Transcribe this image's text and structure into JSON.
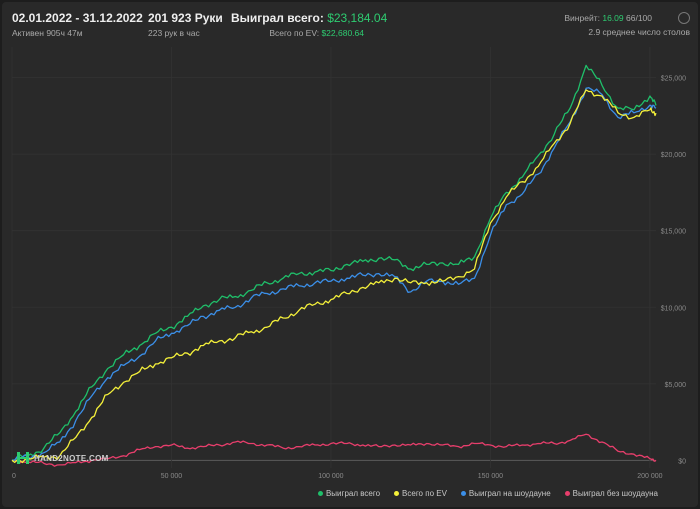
{
  "header": {
    "date_range": "02.01.2022 - 31.12.2022",
    "active": "Активен 905ч 47м",
    "hands": "201 923 Руки",
    "hands_per_hour": "223 рук в час",
    "won_label": "Выиграл всего:",
    "won_value": "$23,184.04",
    "ev_label": "Всего по EV:",
    "ev_value": "$22,680.64",
    "winrate_label": "Винрейт:",
    "winrate_value": "16.09",
    "winrate_rest": "66/100",
    "tables": "2.9 среднее число столов"
  },
  "logo_text": "HAND2NOTE.COM",
  "icons": {
    "settings": "gear-icon",
    "logo": "hand2note-logo-icon"
  },
  "chart_data": {
    "type": "line",
    "x_ticks": [
      "0",
      "50 000",
      "100 000",
      "150 000",
      "200 000"
    ],
    "y_ticks": [
      "$0",
      "$5,000",
      "$10,000",
      "$15,000",
      "$20,000",
      "$25,000"
    ],
    "xlim": [
      0,
      201923
    ],
    "ylim": [
      -500,
      27000
    ],
    "x": [
      0,
      5000,
      10000,
      15000,
      20000,
      25000,
      30000,
      35000,
      40000,
      45000,
      50000,
      55000,
      60000,
      65000,
      70000,
      75000,
      80000,
      85000,
      90000,
      95000,
      100000,
      105000,
      110000,
      115000,
      120000,
      125000,
      130000,
      135000,
      140000,
      145000,
      150000,
      155000,
      160000,
      165000,
      170000,
      175000,
      180000,
      185000,
      190000,
      195000,
      200000,
      201923
    ],
    "series": [
      {
        "name": "Выиграл всего",
        "color": "#1fbf6a",
        "values": [
          0,
          300,
          800,
          1800,
          3200,
          4800,
          6000,
          6900,
          7500,
          8300,
          8700,
          9400,
          10100,
          10500,
          10700,
          11100,
          11600,
          11900,
          12200,
          12300,
          12400,
          12800,
          13000,
          13200,
          13100,
          12500,
          12800,
          12900,
          12800,
          13300,
          15800,
          17500,
          18500,
          19900,
          21300,
          23000,
          25800,
          24500,
          23000,
          22900,
          23800,
          23184
        ]
      },
      {
        "name": "Всего по EV",
        "color": "#f4f03a",
        "values": [
          0,
          100,
          200,
          300,
          1500,
          2800,
          4300,
          5100,
          5800,
          6300,
          6700,
          7000,
          7500,
          7800,
          8000,
          8400,
          8700,
          9300,
          9800,
          10200,
          10500,
          10900,
          11300,
          11600,
          11900,
          11600,
          11600,
          11700,
          12000,
          12500,
          15500,
          17200,
          18200,
          19200,
          20700,
          22000,
          24200,
          23800,
          22700,
          22400,
          22900,
          22680
        ]
      },
      {
        "name": "Выиграл на шоудауне",
        "color": "#3b8fe8",
        "values": [
          0,
          200,
          500,
          1200,
          2600,
          4200,
          5400,
          6200,
          6800,
          7800,
          8300,
          8800,
          9400,
          9800,
          10000,
          10600,
          10900,
          11200,
          11400,
          11600,
          11700,
          11900,
          12100,
          12200,
          12000,
          11000,
          11700,
          11700,
          11500,
          11900,
          14700,
          16700,
          17400,
          18700,
          20400,
          22100,
          24300,
          23900,
          22400,
          22700,
          23200,
          23000
        ]
      },
      {
        "name": "Выиграл без шоудауна",
        "color": "#e83e6c",
        "values": [
          0,
          -100,
          -200,
          -300,
          -150,
          0,
          100,
          300,
          700,
          900,
          1000,
          800,
          900,
          1000,
          1200,
          1100,
          1000,
          800,
          900,
          1000,
          1100,
          1100,
          1000,
          900,
          1000,
          1000,
          1100,
          1000,
          900,
          1100,
          1000,
          900,
          1000,
          1100,
          1100,
          1300,
          1700,
          1200,
          600,
          400,
          100,
          0
        ]
      }
    ]
  }
}
